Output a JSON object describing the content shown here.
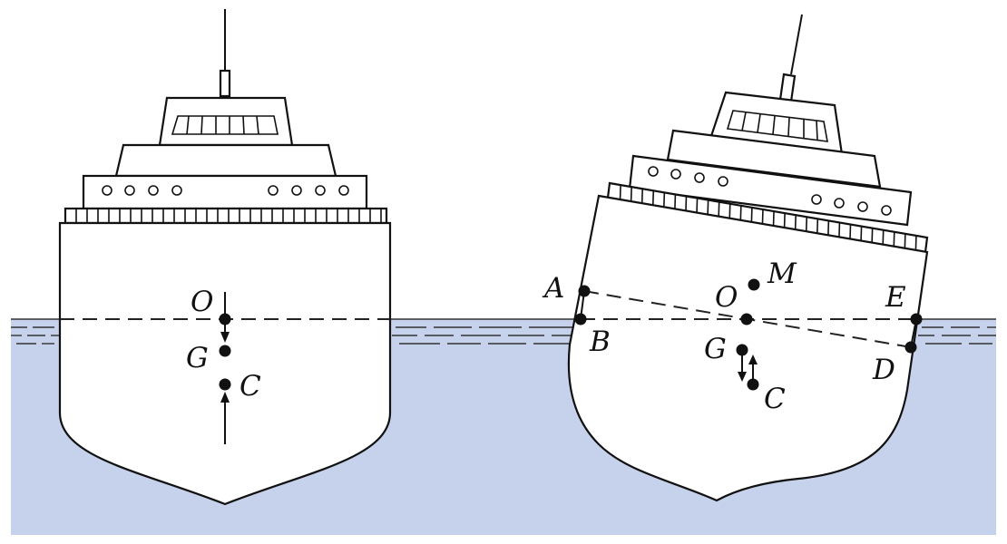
{
  "figure": {
    "water_color": "#c6d2ec",
    "ink_color": "#111111",
    "upright_ship": {
      "points": [
        {
          "id": "O",
          "label": "O"
        },
        {
          "id": "G",
          "label": "G"
        },
        {
          "id": "C",
          "label": "C"
        }
      ]
    },
    "heeled_ship": {
      "points": [
        {
          "id": "A",
          "label": "A"
        },
        {
          "id": "B",
          "label": "B"
        },
        {
          "id": "M",
          "label": "M"
        },
        {
          "id": "O",
          "label": "O"
        },
        {
          "id": "E",
          "label": "E"
        },
        {
          "id": "G",
          "label": "G"
        },
        {
          "id": "D",
          "label": "D"
        },
        {
          "id": "C",
          "label": "C"
        }
      ]
    }
  }
}
